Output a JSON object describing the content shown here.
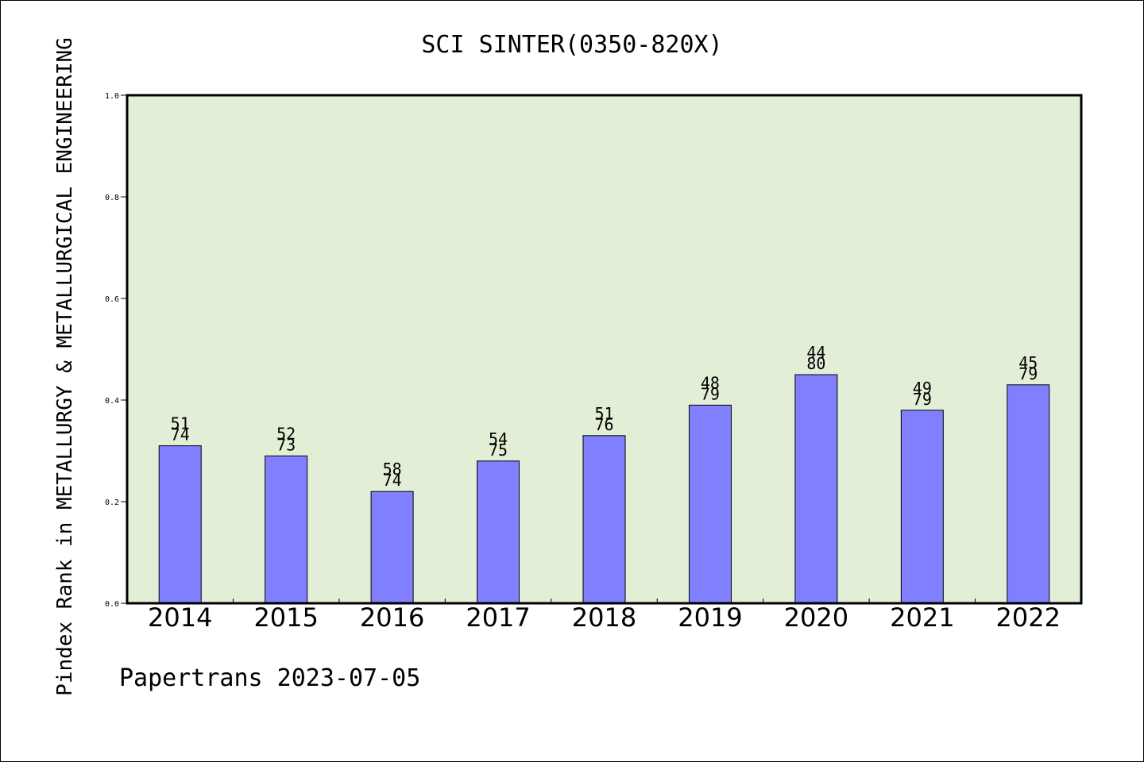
{
  "chart_data": {
    "type": "bar",
    "title": "SCI SINTER(0350-820X)",
    "ylabel": "Pindex Rank in METALLURGY & METALLURGICAL ENGINEERING",
    "xlabel": "",
    "categories": [
      "2014",
      "2015",
      "2016",
      "2017",
      "2018",
      "2019",
      "2020",
      "2021",
      "2022"
    ],
    "values": [
      0.31,
      0.29,
      0.22,
      0.28,
      0.33,
      0.39,
      0.45,
      0.38,
      0.43
    ],
    "labels_top": [
      "51",
      "52",
      "58",
      "54",
      "51",
      "48",
      "44",
      "49",
      "45"
    ],
    "labels_bottom": [
      "74",
      "73",
      "74",
      "75",
      "76",
      "79",
      "80",
      "79",
      "79"
    ],
    "ylim": [
      0,
      1.0
    ],
    "yticks": [
      "0.0",
      "0.2",
      "0.4",
      "0.6",
      "0.8",
      "1.0"
    ],
    "grid": false,
    "colors": {
      "plot_background": "#e2efd6",
      "bar_fill": "#8080ff",
      "bar_stroke": "#000000"
    }
  },
  "footer": {
    "caption": "Papertrans 2023-07-05"
  }
}
